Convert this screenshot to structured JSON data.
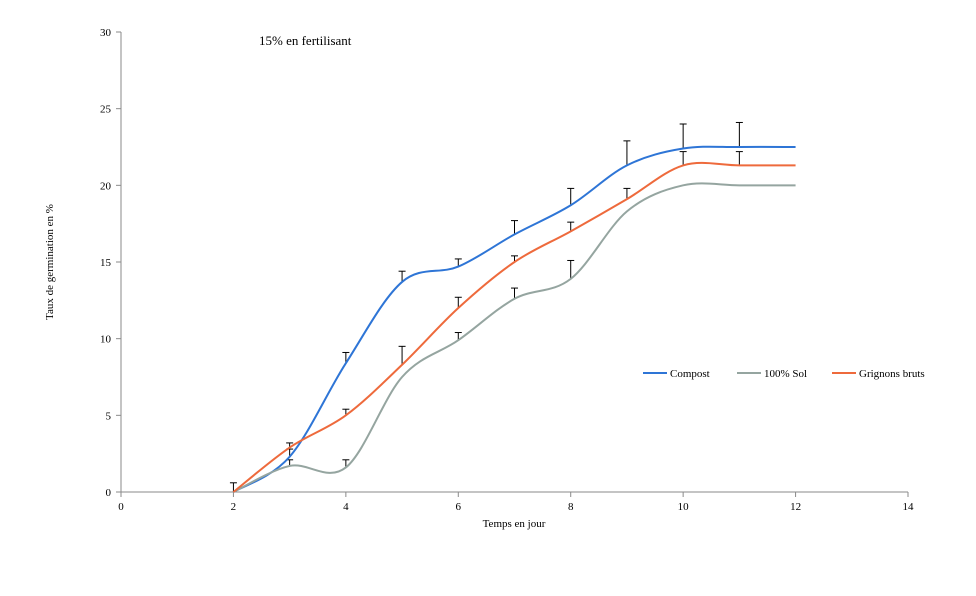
{
  "chart_data": {
    "type": "line",
    "title": "",
    "annotation": "15% en fertilisant",
    "xlabel": "Temps en jour",
    "ylabel": "Taux de germination en %",
    "xlim": [
      0,
      14
    ],
    "ylim": [
      0,
      30
    ],
    "xticks": [
      0,
      2,
      4,
      6,
      8,
      10,
      12,
      14
    ],
    "yticks": [
      0,
      5,
      10,
      15,
      20,
      25,
      30
    ],
    "grid": false,
    "legend_position": "right",
    "x": [
      2,
      3,
      4,
      5,
      6,
      7,
      8,
      9,
      10,
      11,
      12
    ],
    "series": [
      {
        "name": "Compost",
        "color": "#2E75D6",
        "values": [
          0,
          2.3,
          8.4,
          13.7,
          14.7,
          16.8,
          18.7,
          21.3,
          22.4,
          22.5,
          22.5
        ],
        "errors": [
          0.6,
          0.5,
          0.7,
          0.7,
          0.5,
          0.9,
          1.1,
          1.6,
          1.6,
          1.6,
          null
        ]
      },
      {
        "name": "100% Sol",
        "color": "#95A5A0",
        "values": [
          0,
          1.7,
          1.6,
          7.5,
          9.9,
          12.6,
          13.9,
          18.3,
          20.0,
          20.0,
          20.0
        ],
        "errors": [
          0,
          0.4,
          0.5,
          0,
          0.5,
          0.7,
          1.2,
          0,
          0,
          0,
          null
        ]
      },
      {
        "name": "Grignons bruts",
        "color": "#EE6A3C",
        "values": [
          0,
          2.9,
          5.0,
          8.3,
          12.0,
          15.0,
          17.0,
          19.1,
          21.3,
          21.3,
          21.3
        ],
        "errors": [
          0,
          0.3,
          0.4,
          1.2,
          0.7,
          0.4,
          0.6,
          0.7,
          0.9,
          0.9,
          null
        ]
      }
    ]
  }
}
